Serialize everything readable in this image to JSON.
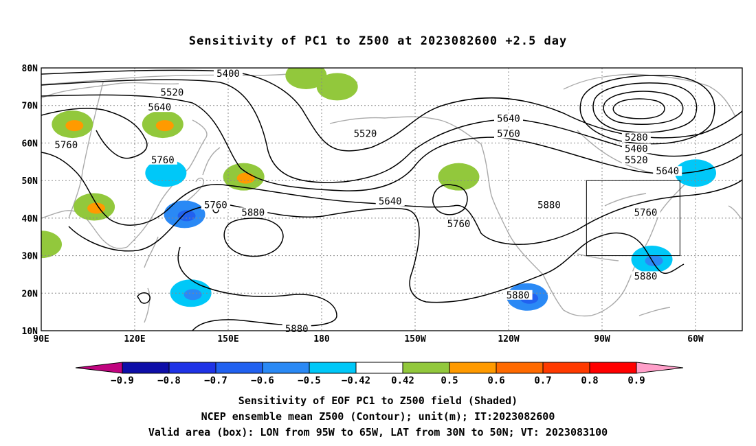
{
  "title": "Sensitivity of PC1 to Z500 at 2023082600 +2.5 day",
  "lat_labels": [
    "80N",
    "70N",
    "60N",
    "50N",
    "40N",
    "30N",
    "20N",
    "10N"
  ],
  "lon_labels": [
    "90E",
    "120E",
    "150E",
    "180",
    "150W",
    "120W",
    "90W",
    "60W"
  ],
  "contour_labels": [
    {
      "text": "5400",
      "lon": 150,
      "lat": 78
    },
    {
      "text": "5520",
      "lon": 132,
      "lat": 73
    },
    {
      "text": "5640",
      "lon": 128,
      "lat": 69
    },
    {
      "text": "5760",
      "lon": 98,
      "lat": 59
    },
    {
      "text": "5760",
      "lon": 129,
      "lat": 55
    },
    {
      "text": "5760",
      "lon": 146,
      "lat": 43
    },
    {
      "text": "5880",
      "lon": 158,
      "lat": 41
    },
    {
      "text": "5520",
      "lon": 194,
      "lat": 62
    },
    {
      "text": "5640",
      "lon": 202,
      "lat": 44
    },
    {
      "text": "5760",
      "lon": 224,
      "lat": 38
    },
    {
      "text": "5640",
      "lon": 240,
      "lat": 66
    },
    {
      "text": "5760",
      "lon": 240,
      "lat": 62
    },
    {
      "text": "5880",
      "lon": 253,
      "lat": 43
    },
    {
      "text": "5880",
      "lon": 243,
      "lat": 19
    },
    {
      "text": "5880",
      "lon": 172,
      "lat": 10
    },
    {
      "text": "5280",
      "lon": 281,
      "lat": 61
    },
    {
      "text": "5400",
      "lon": 281,
      "lat": 58
    },
    {
      "text": "5520",
      "lon": 281,
      "lat": 55
    },
    {
      "text": "5640",
      "lon": 291,
      "lat": 52
    },
    {
      "text": "5760",
      "lon": 284,
      "lat": 41
    },
    {
      "text": "5880",
      "lon": 284,
      "lat": 24
    }
  ],
  "valid_box": {
    "lon_min": 265,
    "lon_max": 295,
    "lat_min": 30,
    "lat_max": 50
  },
  "colorbar": {
    "labels": [
      "−0.9",
      "−0.8",
      "−0.7",
      "−0.6",
      "−0.5",
      "−0.42",
      "0.42",
      "0.5",
      "0.6",
      "0.7",
      "0.8",
      "0.9"
    ],
    "colors": [
      "#c0047f",
      "#0e0ea8",
      "#1f33e6",
      "#2161f0",
      "#2a89f5",
      "#00c8f8",
      "#ffffff",
      "#92c83c",
      "#ff9a00",
      "#ff6a00",
      "#ff3a00",
      "#ff0000",
      "#ff9fc9"
    ]
  },
  "shaded_patches": [
    {
      "lon": 100,
      "lat": 65,
      "level": "0.5",
      "inner": "0.6"
    },
    {
      "lon": 129,
      "lat": 65,
      "level": "0.5",
      "inner": "0.6"
    },
    {
      "lon": 155,
      "lat": 51,
      "level": "0.5",
      "inner": "0.6"
    },
    {
      "lon": 107,
      "lat": 43,
      "level": "0.5",
      "inner": "0.6"
    },
    {
      "lon": 136,
      "lat": 41,
      "level": "-0.6",
      "inner": "-0.7"
    },
    {
      "lon": 138,
      "lat": 20,
      "level": "-0.5",
      "inner": "-0.6"
    },
    {
      "lon": 246,
      "lat": 19,
      "level": "-0.6",
      "inner": "-0.7"
    },
    {
      "lon": 224,
      "lat": 51,
      "level": "0.5",
      "inner": "0.5"
    },
    {
      "lon": 175,
      "lat": 78,
      "level": "0.5",
      "inner": "0.5"
    },
    {
      "lon": 185,
      "lat": 75,
      "level": "0.5",
      "inner": "0.5"
    },
    {
      "lon": 286,
      "lat": 29,
      "level": "-0.5",
      "inner": "-0.6"
    },
    {
      "lon": 300,
      "lat": 52,
      "level": "-0.5",
      "inner": "-0.5"
    },
    {
      "lon": 130,
      "lat": 52,
      "level": "-0.5",
      "inner": "-0.5"
    },
    {
      "lon": 90,
      "lat": 33,
      "level": "0.5",
      "inner": "0.5"
    }
  ],
  "footer": {
    "line1": "Sensitivity of EOF PC1 to Z500 field (Shaded)",
    "line2": "NCEP ensemble mean Z500 (Contour); unit(m); IT:2023082600",
    "line3": "Valid area (box): LON from 95W to 65W, LAT from 30N to 50N; VT: 2023083100"
  }
}
